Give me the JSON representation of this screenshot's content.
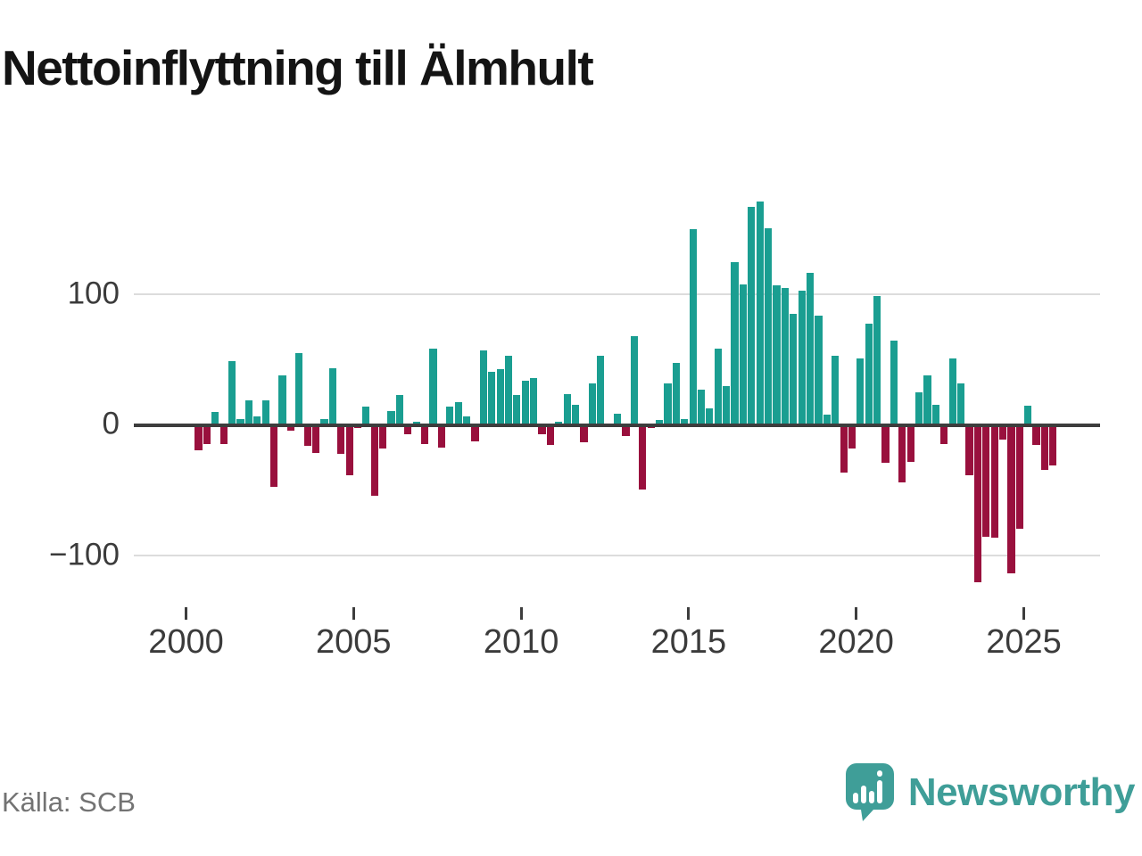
{
  "title": "Nettoinflyttning till Älmhult",
  "source": "Källa: SCB",
  "brand": {
    "name": "Newsworthy"
  },
  "chart_data": {
    "type": "bar",
    "title": "Nettoinflyttning till Älmhult",
    "xlabel": "",
    "ylabel": "",
    "time_unit": "quarter",
    "grid": "horizontal",
    "legend": "none",
    "ylim": [
      -130,
      185
    ],
    "y_ticks": [
      100,
      0,
      -100
    ],
    "y_tick_labels": [
      "100",
      "0",
      "−100"
    ],
    "x_ticks": [
      2000,
      2005,
      2010,
      2015,
      2020,
      2025
    ],
    "colors": {
      "positive": "#1a9e91",
      "negative": "#99103d",
      "axis": "#3d3d3d",
      "grid": "#dcdcdc"
    },
    "series": [
      {
        "quarter": "2000Q2",
        "value": -19
      },
      {
        "quarter": "2000Q3",
        "value": -14
      },
      {
        "quarter": "2000Q4",
        "value": 10
      },
      {
        "quarter": "2001Q1",
        "value": -14
      },
      {
        "quarter": "2001Q2",
        "value": 49
      },
      {
        "quarter": "2001Q3",
        "value": 5
      },
      {
        "quarter": "2001Q4",
        "value": 19
      },
      {
        "quarter": "2002Q1",
        "value": 7
      },
      {
        "quarter": "2002Q2",
        "value": 19
      },
      {
        "quarter": "2002Q3",
        "value": -47
      },
      {
        "quarter": "2002Q4",
        "value": 38
      },
      {
        "quarter": "2003Q1",
        "value": -4
      },
      {
        "quarter": "2003Q2",
        "value": 55
      },
      {
        "quarter": "2003Q3",
        "value": -16
      },
      {
        "quarter": "2003Q4",
        "value": -21
      },
      {
        "quarter": "2004Q1",
        "value": 5
      },
      {
        "quarter": "2004Q2",
        "value": 44
      },
      {
        "quarter": "2004Q3",
        "value": -22
      },
      {
        "quarter": "2004Q4",
        "value": -38
      },
      {
        "quarter": "2005Q1",
        "value": -2
      },
      {
        "quarter": "2005Q2",
        "value": 14
      },
      {
        "quarter": "2005Q3",
        "value": -54
      },
      {
        "quarter": "2005Q4",
        "value": -18
      },
      {
        "quarter": "2006Q1",
        "value": 11
      },
      {
        "quarter": "2006Q2",
        "value": 23
      },
      {
        "quarter": "2006Q3",
        "value": -7
      },
      {
        "quarter": "2006Q4",
        "value": 3
      },
      {
        "quarter": "2007Q1",
        "value": -14
      },
      {
        "quarter": "2007Q2",
        "value": 59
      },
      {
        "quarter": "2007Q3",
        "value": -17
      },
      {
        "quarter": "2007Q4",
        "value": 14
      },
      {
        "quarter": "2008Q1",
        "value": 18
      },
      {
        "quarter": "2008Q2",
        "value": 7
      },
      {
        "quarter": "2008Q3",
        "value": -12
      },
      {
        "quarter": "2008Q4",
        "value": 57
      },
      {
        "quarter": "2009Q1",
        "value": 41
      },
      {
        "quarter": "2009Q2",
        "value": 43
      },
      {
        "quarter": "2009Q3",
        "value": 53
      },
      {
        "quarter": "2009Q4",
        "value": 23
      },
      {
        "quarter": "2010Q1",
        "value": 34
      },
      {
        "quarter": "2010Q2",
        "value": 36
      },
      {
        "quarter": "2010Q3",
        "value": -7
      },
      {
        "quarter": "2010Q4",
        "value": -15
      },
      {
        "quarter": "2011Q1",
        "value": 3
      },
      {
        "quarter": "2011Q2",
        "value": 24
      },
      {
        "quarter": "2011Q3",
        "value": 16
      },
      {
        "quarter": "2011Q4",
        "value": -13
      },
      {
        "quarter": "2012Q1",
        "value": 32
      },
      {
        "quarter": "2012Q2",
        "value": 53
      },
      {
        "quarter": "2012Q3",
        "value": 0
      },
      {
        "quarter": "2012Q4",
        "value": 9
      },
      {
        "quarter": "2013Q1",
        "value": -8
      },
      {
        "quarter": "2013Q2",
        "value": 68
      },
      {
        "quarter": "2013Q3",
        "value": -49
      },
      {
        "quarter": "2013Q4",
        "value": -2
      },
      {
        "quarter": "2014Q1",
        "value": 4
      },
      {
        "quarter": "2014Q2",
        "value": 32
      },
      {
        "quarter": "2014Q3",
        "value": 48
      },
      {
        "quarter": "2014Q4",
        "value": 5
      },
      {
        "quarter": "2015Q1",
        "value": 150
      },
      {
        "quarter": "2015Q2",
        "value": 27
      },
      {
        "quarter": "2015Q3",
        "value": 13
      },
      {
        "quarter": "2015Q4",
        "value": 59
      },
      {
        "quarter": "2016Q1",
        "value": 30
      },
      {
        "quarter": "2016Q2",
        "value": 125
      },
      {
        "quarter": "2016Q3",
        "value": 108
      },
      {
        "quarter": "2016Q4",
        "value": 167
      },
      {
        "quarter": "2017Q1",
        "value": 171
      },
      {
        "quarter": "2017Q2",
        "value": 151
      },
      {
        "quarter": "2017Q3",
        "value": 107
      },
      {
        "quarter": "2017Q4",
        "value": 105
      },
      {
        "quarter": "2018Q1",
        "value": 85
      },
      {
        "quarter": "2018Q2",
        "value": 103
      },
      {
        "quarter": "2018Q3",
        "value": 117
      },
      {
        "quarter": "2018Q4",
        "value": 84
      },
      {
        "quarter": "2019Q1",
        "value": 8
      },
      {
        "quarter": "2019Q2",
        "value": 53
      },
      {
        "quarter": "2019Q3",
        "value": -36
      },
      {
        "quarter": "2019Q4",
        "value": -18
      },
      {
        "quarter": "2020Q1",
        "value": 51
      },
      {
        "quarter": "2020Q2",
        "value": 78
      },
      {
        "quarter": "2020Q3",
        "value": 99
      },
      {
        "quarter": "2020Q4",
        "value": -29
      },
      {
        "quarter": "2021Q1",
        "value": 65
      },
      {
        "quarter": "2021Q2",
        "value": -44
      },
      {
        "quarter": "2021Q3",
        "value": -28
      },
      {
        "quarter": "2021Q4",
        "value": 25
      },
      {
        "quarter": "2022Q1",
        "value": 38
      },
      {
        "quarter": "2022Q2",
        "value": 16
      },
      {
        "quarter": "2022Q3",
        "value": -14
      },
      {
        "quarter": "2022Q4",
        "value": 51
      },
      {
        "quarter": "2023Q1",
        "value": 32
      },
      {
        "quarter": "2023Q2",
        "value": -38
      },
      {
        "quarter": "2023Q3",
        "value": -120
      },
      {
        "quarter": "2023Q4",
        "value": -85
      },
      {
        "quarter": "2024Q1",
        "value": -86
      },
      {
        "quarter": "2024Q2",
        "value": -11
      },
      {
        "quarter": "2024Q3",
        "value": -113
      },
      {
        "quarter": "2024Q4",
        "value": -79
      },
      {
        "quarter": "2025Q1",
        "value": 15
      },
      {
        "quarter": "2025Q2",
        "value": -15
      },
      {
        "quarter": "2025Q3",
        "value": -34
      },
      {
        "quarter": "2025Q4",
        "value": -31
      }
    ]
  }
}
